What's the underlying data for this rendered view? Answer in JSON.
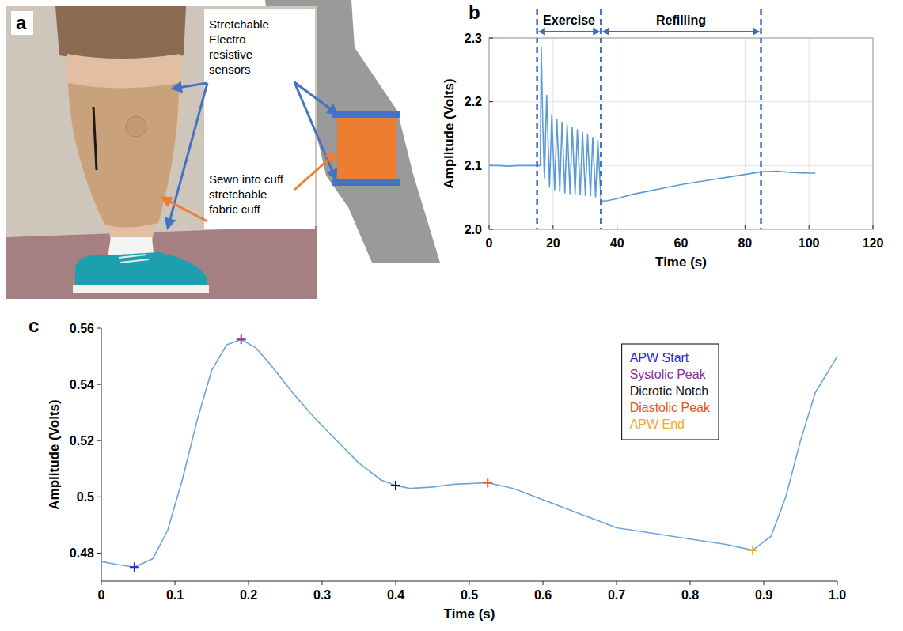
{
  "diagram": {
    "panel": "a",
    "callouts": [
      {
        "lines": [
          "Stretchable",
          "Electro",
          "resistive",
          "sensors"
        ],
        "color": "#4472c4"
      },
      {
        "lines": [
          "Sewn into cuff",
          "stretchable",
          "fabric cuff"
        ],
        "color": "#ed7d31"
      }
    ]
  },
  "chart_data": [
    {
      "panel": "b",
      "type": "line",
      "x_label": "Time (s)",
      "y_label": "Amplitude (Volts)",
      "color": "#5b9bd5",
      "x": [
        0,
        3,
        6,
        9,
        12,
        15,
        16,
        16.3,
        16.8,
        17.3,
        18,
        18.9,
        19.6,
        20.5,
        21.2,
        22.1,
        22.8,
        23.7,
        24.4,
        25.3,
        26,
        26.9,
        27.6,
        28.5,
        29.2,
        30.1,
        30.8,
        31.7,
        32.4,
        33.3,
        34,
        35,
        37,
        40,
        45,
        50,
        55,
        60,
        65,
        70,
        75,
        80,
        85,
        90,
        95,
        100,
        102
      ],
      "values": [
        2.1,
        2.1,
        2.099,
        2.1,
        2.1,
        2.1,
        2.1,
        2.285,
        2.16,
        2.08,
        2.21,
        2.066,
        2.18,
        2.062,
        2.172,
        2.059,
        2.168,
        2.057,
        2.164,
        2.056,
        2.16,
        2.055,
        2.156,
        2.054,
        2.152,
        2.053,
        2.148,
        2.052,
        2.144,
        2.051,
        2.14,
        2.044,
        2.045,
        2.048,
        2.055,
        2.06,
        2.065,
        2.07,
        2.074,
        2.078,
        2.082,
        2.086,
        2.09,
        2.091,
        2.089,
        2.088,
        2.088
      ],
      "xlim": [
        0,
        120
      ],
      "ylim": [
        2.0,
        2.3
      ],
      "xticks": [
        0,
        20,
        40,
        60,
        80,
        100,
        120
      ],
      "yticks": [
        {
          "value": 2,
          "label": "2.0"
        },
        2.1,
        2.2,
        2.3
      ],
      "grid": true,
      "annotations": [
        {
          "text": "Exercise",
          "x": [
            15,
            35
          ]
        },
        {
          "text": "Refilling",
          "x": [
            35,
            85
          ]
        }
      ]
    },
    {
      "panel": "c",
      "type": "line",
      "x_label": "Time (s)",
      "y_label": "Amplitude (Volts)",
      "xlim": [
        0,
        1
      ],
      "ylim": [
        0.47,
        0.56
      ],
      "xticks": [
        0,
        0.1,
        0.2,
        0.3,
        0.4,
        0.5,
        0.6,
        0.7,
        0.8,
        0.9,
        {
          "value": 1,
          "label": "1.0"
        }
      ],
      "yticks": [
        0.48,
        0.5,
        0.52,
        0.54,
        0.56
      ],
      "grid": false,
      "legend": "upper right",
      "series": [
        {
          "type": "line",
          "color": "#6aa6dc",
          "x": [
            0,
            0.02,
            0.045,
            0.07,
            0.09,
            0.11,
            0.13,
            0.15,
            0.17,
            0.19,
            0.21,
            0.23,
            0.26,
            0.29,
            0.32,
            0.35,
            0.38,
            0.4,
            0.42,
            0.45,
            0.48,
            0.525,
            0.56,
            0.6,
            0.65,
            0.7,
            0.75,
            0.8,
            0.85,
            0.885,
            0.91,
            0.93,
            0.95,
            0.97,
            1.0
          ],
          "values": [
            0.477,
            0.476,
            0.475,
            0.478,
            0.488,
            0.506,
            0.527,
            0.545,
            0.554,
            0.556,
            0.553,
            0.547,
            0.537,
            0.528,
            0.52,
            0.512,
            0.506,
            0.504,
            0.503,
            0.5035,
            0.5045,
            0.505,
            0.503,
            0.499,
            0.494,
            0.489,
            0.487,
            0.485,
            0.483,
            0.481,
            0.486,
            0.5,
            0.52,
            0.537,
            0.55
          ]
        },
        {
          "name": "APW Start",
          "type": "scatter",
          "marker": "plus",
          "color": "#2a2ad8",
          "x": [
            0.045
          ],
          "values": [
            0.475
          ]
        },
        {
          "name": "Systolic Peak",
          "type": "scatter",
          "marker": "plus",
          "color": "#8e2c9e",
          "x": [
            0.19
          ],
          "values": [
            0.556
          ]
        },
        {
          "name": "Dicrotic Notch",
          "type": "scatter",
          "marker": "plus",
          "color": "#111111",
          "x": [
            0.4
          ],
          "values": [
            0.504
          ]
        },
        {
          "name": "Diastolic Peak",
          "type": "scatter",
          "marker": "plus",
          "color": "#e8541e",
          "x": [
            0.525
          ],
          "values": [
            0.505
          ]
        },
        {
          "name": "APW End",
          "type": "scatter",
          "marker": "plus",
          "color": "#f0a92a",
          "x": [
            0.885
          ],
          "values": [
            0.481
          ]
        }
      ]
    }
  ]
}
